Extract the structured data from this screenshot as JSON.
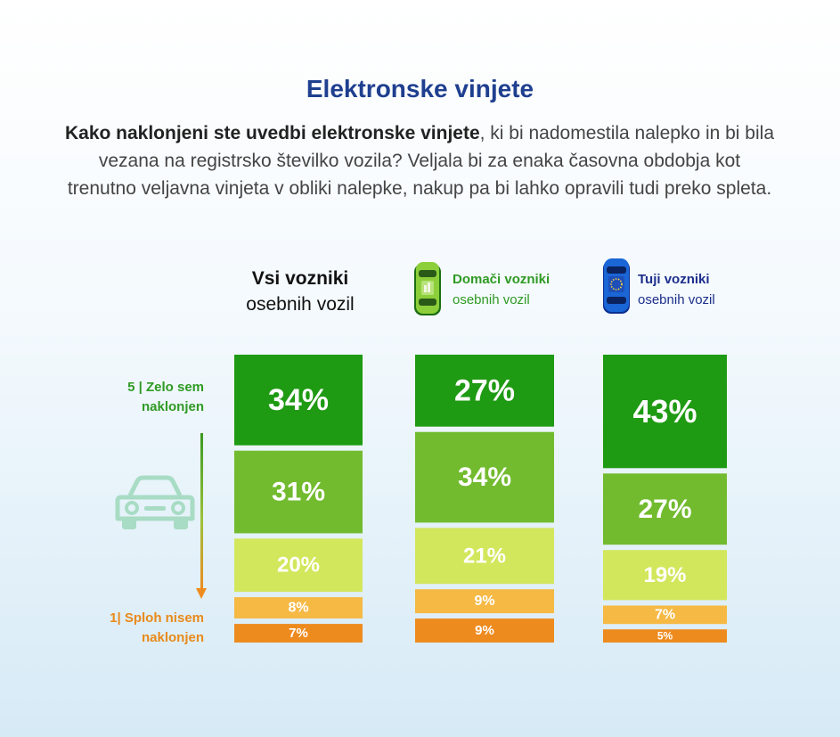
{
  "title": "Elektronske vinjete",
  "question": {
    "bold": "Kako naklonjeni ste uvedbi elektronske vinjete",
    "rest": ", ki bi nadomestila nalepko in bi bila vezana na registrsko številko vozila? Veljala bi za enaka časovna obdobja kot trenutno veljavna vinjeta v obliki nalepke, nakup pa bi lahko opravili tudi preko spleta."
  },
  "scale": {
    "top_label_line1": "5 | Zelo sem",
    "top_label_line2": "naklonjen",
    "bottom_label_line1": "1| Sploh nisem",
    "bottom_label_line2": "naklonjen"
  },
  "icons": {
    "domestic_car": "green-car-icon",
    "foreign_car": "blue-eu-car-icon",
    "scale_car": "car-front-icon"
  },
  "colors": {
    "level5": "#1f9a13",
    "level4": "#72bb2f",
    "level3": "#d3e75c",
    "level2": "#f5b944",
    "level1": "#ee8b1f",
    "title": "#1f3f8f",
    "domestic": "#2f9a23",
    "foreign": "#1d2f8c"
  },
  "chart_data": {
    "type": "bar",
    "stacked": true,
    "levels": [
      "5",
      "4",
      "3",
      "2",
      "1"
    ],
    "categories": [
      {
        "line1": "Vsi vozniki",
        "line2": "osebnih vozil"
      },
      {
        "line1": "Domači vozniki",
        "line2": "osebnih vozil"
      },
      {
        "line1": "Tuji vozniki",
        "line2": "osebnih vozil"
      }
    ],
    "values": [
      [
        34,
        31,
        20,
        8,
        7
      ],
      [
        27,
        34,
        21,
        9,
        9
      ],
      [
        43,
        27,
        19,
        7,
        5
      ]
    ],
    "labels": [
      [
        "34%",
        "31%",
        "20%",
        "8%",
        "7%"
      ],
      [
        "27%",
        "34%",
        "21%",
        "9%",
        "9%"
      ],
      [
        "43%",
        "27%",
        "19%",
        "7%",
        "5%"
      ]
    ]
  }
}
